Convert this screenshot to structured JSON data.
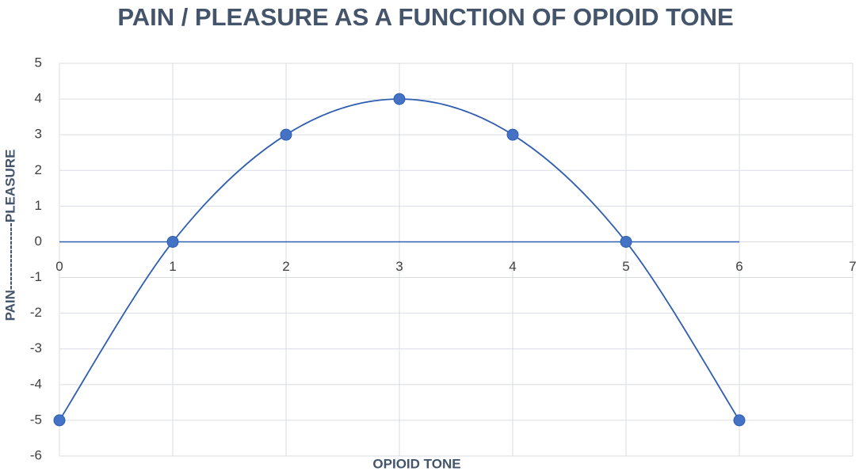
{
  "chart_data": {
    "type": "scatter-smooth",
    "title": "PAIN / PLEASURE AS A FUNCTION OF OPIOID TONE",
    "x_label": "OPIOID TONE",
    "y_label": "PAIN---------------PLEASURE",
    "x": [
      0,
      1,
      2,
      3,
      4,
      5,
      6
    ],
    "values": [
      -5,
      0,
      3,
      4,
      3,
      0,
      -5
    ],
    "color": "#4472c4",
    "line_color": "#2f5fb0",
    "xlim": [
      0,
      7
    ],
    "xticks": [
      0,
      1,
      2,
      3,
      4,
      5,
      6,
      7
    ],
    "ylim": [
      -6,
      5
    ],
    "yticks": [
      -6,
      -5,
      -4,
      -3,
      -2,
      -1,
      0,
      1,
      2,
      3,
      4,
      5
    ],
    "grid": true
  }
}
